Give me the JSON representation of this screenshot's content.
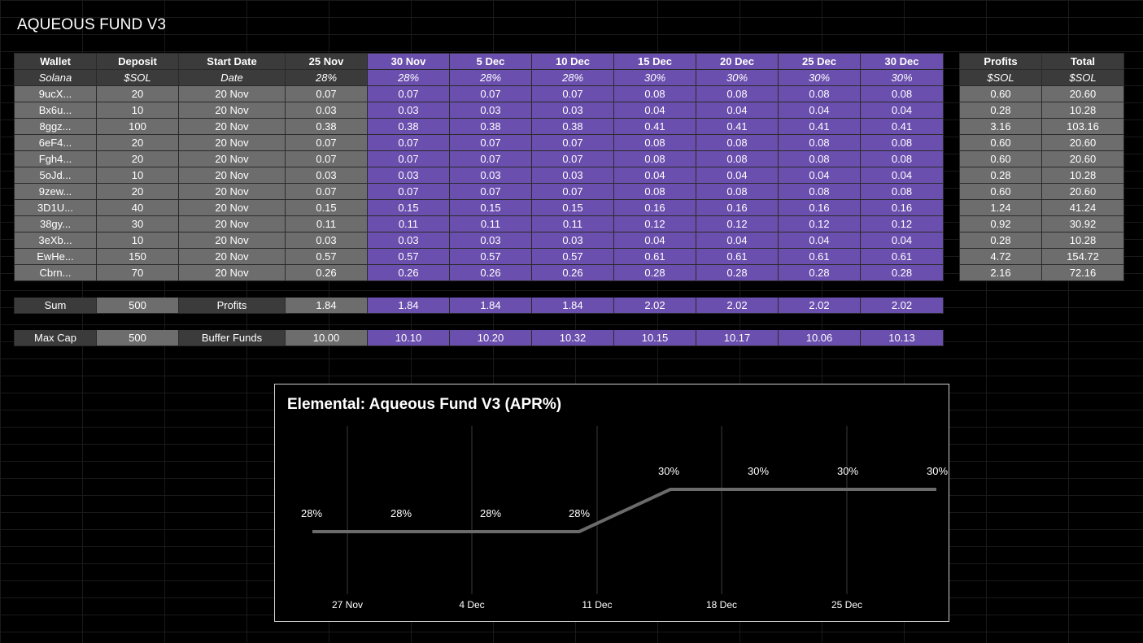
{
  "title": "AQUEOUS FUND V3",
  "main_table": {
    "headers": [
      "Wallet",
      "Deposit",
      "Start Date",
      "25 Nov",
      "30 Nov",
      "5 Dec",
      "10 Dec",
      "15 Dec",
      "20 Dec",
      "25 Dec",
      "30 Dec"
    ],
    "subheaders": [
      "Solana",
      "$SOL",
      "Date",
      "28%",
      "28%",
      "28%",
      "28%",
      "30%",
      "30%",
      "30%",
      "30%"
    ],
    "rows": [
      [
        "9ucX...",
        "20",
        "20 Nov",
        "0.07",
        "0.07",
        "0.07",
        "0.07",
        "0.08",
        "0.08",
        "0.08",
        "0.08"
      ],
      [
        "Bx6u...",
        "10",
        "20 Nov",
        "0.03",
        "0.03",
        "0.03",
        "0.03",
        "0.04",
        "0.04",
        "0.04",
        "0.04"
      ],
      [
        "8ggz...",
        "100",
        "20 Nov",
        "0.38",
        "0.38",
        "0.38",
        "0.38",
        "0.41",
        "0.41",
        "0.41",
        "0.41"
      ],
      [
        "6eF4...",
        "20",
        "20 Nov",
        "0.07",
        "0.07",
        "0.07",
        "0.07",
        "0.08",
        "0.08",
        "0.08",
        "0.08"
      ],
      [
        "Fgh4...",
        "20",
        "20 Nov",
        "0.07",
        "0.07",
        "0.07",
        "0.07",
        "0.08",
        "0.08",
        "0.08",
        "0.08"
      ],
      [
        "5oJd...",
        "10",
        "20 Nov",
        "0.03",
        "0.03",
        "0.03",
        "0.03",
        "0.04",
        "0.04",
        "0.04",
        "0.04"
      ],
      [
        "9zew...",
        "20",
        "20 Nov",
        "0.07",
        "0.07",
        "0.07",
        "0.07",
        "0.08",
        "0.08",
        "0.08",
        "0.08"
      ],
      [
        "3D1U...",
        "40",
        "20 Nov",
        "0.15",
        "0.15",
        "0.15",
        "0.15",
        "0.16",
        "0.16",
        "0.16",
        "0.16"
      ],
      [
        "38gy...",
        "30",
        "20 Nov",
        "0.11",
        "0.11",
        "0.11",
        "0.11",
        "0.12",
        "0.12",
        "0.12",
        "0.12"
      ],
      [
        "3eXb...",
        "10",
        "20 Nov",
        "0.03",
        "0.03",
        "0.03",
        "0.03",
        "0.04",
        "0.04",
        "0.04",
        "0.04"
      ],
      [
        "EwHe...",
        "150",
        "20 Nov",
        "0.57",
        "0.57",
        "0.57",
        "0.57",
        "0.61",
        "0.61",
        "0.61",
        "0.61"
      ],
      [
        "Cbrn...",
        "70",
        "20 Nov",
        "0.26",
        "0.26",
        "0.26",
        "0.26",
        "0.28",
        "0.28",
        "0.28",
        "0.28"
      ]
    ],
    "sum_row": [
      "Sum",
      "500",
      "Profits",
      "1.84",
      "1.84",
      "1.84",
      "1.84",
      "2.02",
      "2.02",
      "2.02",
      "2.02"
    ],
    "cap_row": [
      "Max Cap",
      "500",
      "Buffer Funds",
      "10.00",
      "10.10",
      "10.20",
      "10.32",
      "10.15",
      "10.17",
      "10.06",
      "10.13"
    ]
  },
  "side_table": {
    "headers": [
      "Profits",
      "Total"
    ],
    "subheaders": [
      "$SOL",
      "$SOL"
    ],
    "rows": [
      [
        "0.60",
        "20.60"
      ],
      [
        "0.28",
        "10.28"
      ],
      [
        "3.16",
        "103.16"
      ],
      [
        "0.60",
        "20.60"
      ],
      [
        "0.60",
        "20.60"
      ],
      [
        "0.28",
        "10.28"
      ],
      [
        "0.60",
        "20.60"
      ],
      [
        "1.24",
        "41.24"
      ],
      [
        "0.92",
        "30.92"
      ],
      [
        "0.28",
        "10.28"
      ],
      [
        "4.72",
        "154.72"
      ],
      [
        "2.16",
        "72.16"
      ]
    ]
  },
  "colors": {
    "purple": "#6a4fae",
    "gray": "#6d6d6d",
    "dark": "#3b3b3b",
    "line": "#6b6b6b"
  },
  "chart_data": {
    "type": "line",
    "title": "Elemental: Aqueous Fund V3 (APR%)",
    "x": [
      "2024-11-25",
      "2024-11-30",
      "2024-12-05",
      "2024-12-10",
      "2024-12-15",
      "2024-12-20",
      "2024-12-25",
      "2024-12-30"
    ],
    "x_tick_labels": [
      "27 Nov",
      "4 Dec",
      "11 Dec",
      "18 Dec",
      "25 Dec"
    ],
    "series": [
      {
        "values": [
          28,
          28,
          28,
          28,
          30,
          30,
          30,
          30
        ],
        "labels": [
          "28%",
          "28%",
          "28%",
          "28%",
          "30%",
          "30%",
          "30%",
          "30%"
        ]
      }
    ],
    "xlabel": "",
    "ylabel": "",
    "grid": "vertical",
    "legend": "none"
  }
}
